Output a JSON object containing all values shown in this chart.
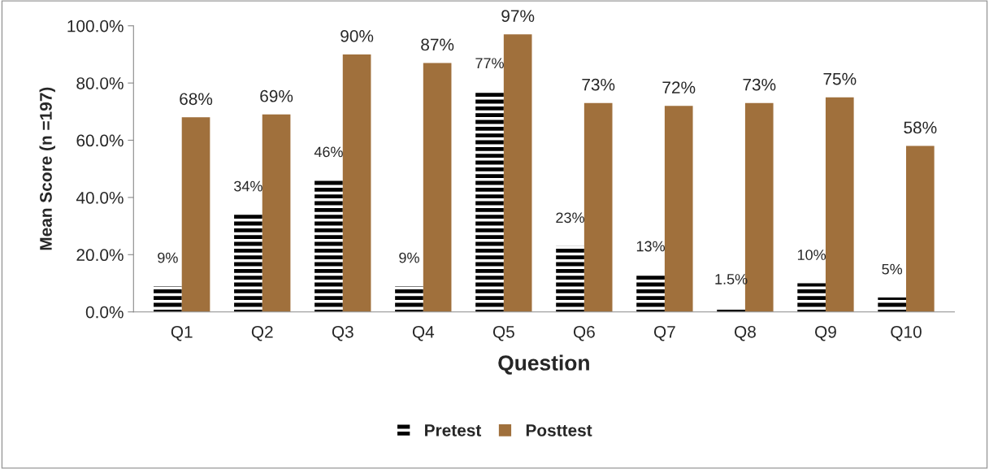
{
  "chart_data": {
    "type": "bar",
    "xlabel": "Question",
    "ylabel": "Mean Score (n =197)",
    "categories": [
      "Q1",
      "Q2",
      "Q3",
      "Q4",
      "Q5",
      "Q6",
      "Q7",
      "Q8",
      "Q9",
      "Q10"
    ],
    "series": [
      {
        "name": "Pretest",
        "color": "#000000",
        "values": [
          9,
          34,
          46,
          9,
          77,
          23,
          13,
          1.5,
          10,
          5
        ],
        "value_labels": [
          "9%",
          "34%",
          "46%",
          "9%",
          "77%",
          "23%",
          "13%",
          "1.5%",
          "10%",
          "5%"
        ]
      },
      {
        "name": "Posttest",
        "color": "#a0703c",
        "values": [
          68,
          69,
          90,
          87,
          97,
          73,
          72,
          73,
          75,
          58
        ],
        "value_labels": [
          "68%",
          "69%",
          "90%",
          "87%",
          "97%",
          "73%",
          "72%",
          "73%",
          "75%",
          "58%"
        ]
      }
    ],
    "ylim": [
      0,
      100
    ],
    "yticks": [
      {
        "value": 0,
        "label": "0.0%"
      },
      {
        "value": 20,
        "label": "20.0%"
      },
      {
        "value": 40,
        "label": "40.0%"
      },
      {
        "value": 60,
        "label": "60.0%"
      },
      {
        "value": 80,
        "label": "80.0%"
      },
      {
        "value": 100,
        "label": "100.0%"
      }
    ],
    "grid": false,
    "legend": "bottom"
  }
}
